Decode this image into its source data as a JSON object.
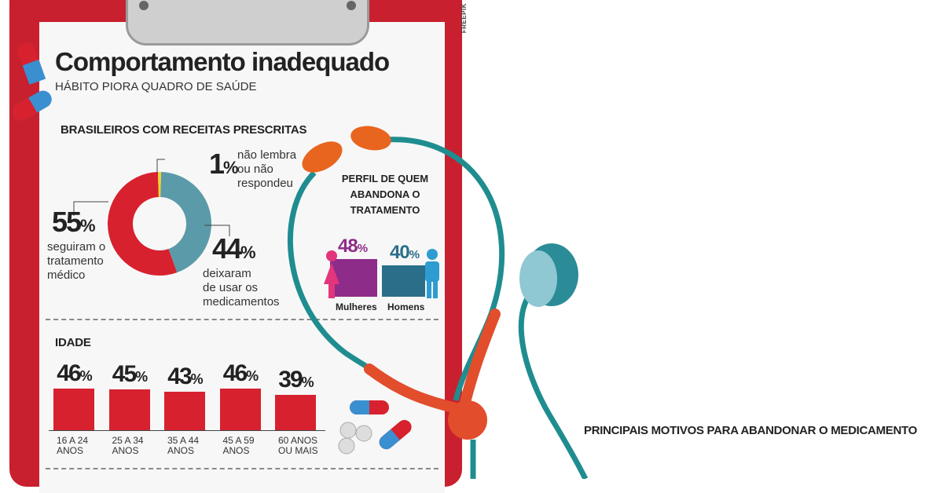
{
  "credit": "FREEPIK",
  "title": "Comportamento inadequado",
  "subtitle": "HÁBITO PIORA QUADRO DE SAÚDE",
  "colors": {
    "red": "#d7212f",
    "teal": "#5b9aa8",
    "yellow": "#f2d22e",
    "purple": "#8e2c8a",
    "blue": "#2b6e8a"
  },
  "icons": [
    "pill-icon",
    "stethoscope-icon",
    "woman-icon",
    "man-icon"
  ],
  "donut_section": {
    "heading": "BRASILEIROS COM RECEITAS PRESCRITAS",
    "items": [
      {
        "pct": "55",
        "text1": "seguiram o",
        "text2": "tratamento",
        "text3": "médico"
      },
      {
        "pct": "44",
        "text1": "deixaram",
        "text2": "de usar os",
        "text3": "medicamentos"
      },
      {
        "pct": "1",
        "text1": "não lembra",
        "text2": "ou não",
        "text3": "respondeu"
      }
    ]
  },
  "age_section": {
    "heading": "IDADE",
    "bars": [
      {
        "pct": "46",
        "line1": "16 A 24",
        "line2": "ANOS"
      },
      {
        "pct": "45",
        "line1": "25 A 34",
        "line2": "ANOS"
      },
      {
        "pct": "43",
        "line1": "35 A 44",
        "line2": "ANOS"
      },
      {
        "pct": "46",
        "line1": "45 A 59",
        "line2": "ANOS"
      },
      {
        "pct": "39",
        "line1": "60 ANOS",
        "line2": "OU MAIS"
      }
    ]
  },
  "perfil_section": {
    "heading1": "PERFIL DE QUEM",
    "heading2": "ABANDONA O",
    "heading3": "TRATAMENTO",
    "groups": [
      {
        "pct": "48",
        "label": "Mulheres"
      },
      {
        "pct": "40",
        "label": "Homens"
      }
    ]
  },
  "motivos_heading": "PRINCIPAIS MOTIVOS PARA ABANDONAR O MEDICAMENTO",
  "chart_data": [
    {
      "type": "pie",
      "title": "BRASILEIROS COM RECEITAS PRESCRITAS",
      "categories": [
        "seguiram o tratamento médico",
        "deixaram de usar os medicamentos",
        "não lembra ou não respondeu"
      ],
      "values": [
        55,
        44,
        1
      ]
    },
    {
      "type": "bar",
      "title": "IDADE",
      "categories": [
        "16 A 24 ANOS",
        "25 A 34 ANOS",
        "35 A 44 ANOS",
        "45 A 59 ANOS",
        "60 ANOS OU MAIS"
      ],
      "values": [
        46,
        45,
        43,
        46,
        39
      ]
    },
    {
      "type": "bar",
      "title": "PERFIL DE QUEM ABANDONA O TRATAMENTO",
      "categories": [
        "Mulheres",
        "Homens"
      ],
      "values": [
        48,
        40
      ]
    }
  ]
}
